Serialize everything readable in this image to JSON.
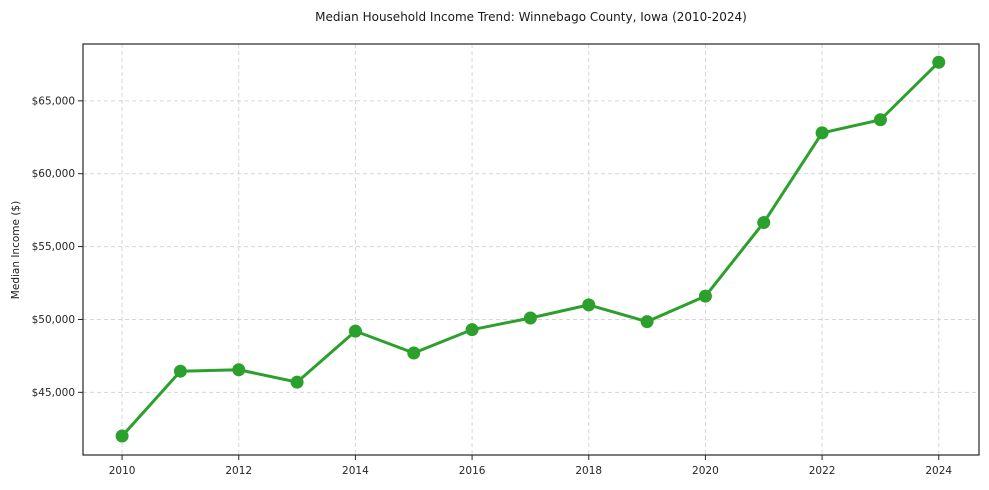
{
  "chart_data": {
    "type": "line",
    "title": "Median Household Income Trend: Winnebago County, Iowa (2010-2024)",
    "xlabel": "",
    "ylabel": "Median Income ($)",
    "series": [
      {
        "name": "Median household income",
        "x": [
          2010,
          2011,
          2012,
          2013,
          2014,
          2015,
          2016,
          2017,
          2018,
          2019,
          2020,
          2021,
          2022,
          2023,
          2024
        ],
        "values": [
          42000,
          46450,
          46550,
          45700,
          49200,
          47700,
          49300,
          50100,
          51000,
          49850,
          51600,
          56650,
          62800,
          63700,
          67650
        ]
      }
    ],
    "x_ticks": [
      2010,
      2012,
      2014,
      2016,
      2018,
      2020,
      2022,
      2024
    ],
    "x_tick_labels": [
      "2010",
      "2012",
      "2014",
      "2016",
      "2018",
      "2020",
      "2022",
      "2024"
    ],
    "y_ticks": [
      45000,
      50000,
      55000,
      60000,
      65000
    ],
    "y_tick_labels": [
      "$45,000",
      "$50,000",
      "$55,000",
      "$60,000",
      "$65,000"
    ],
    "xlim": [
      2009.33,
      2024.69
    ],
    "ylim": [
      40700,
      68900
    ],
    "grid": true,
    "grid_style": "dashed",
    "legend_position": "none",
    "line_color": "#2ca02c",
    "marker_color": "#2ca02c",
    "marker": "circle",
    "grid_color": "#cccccc",
    "spine_color": "#262626",
    "background_color": "#ffffff"
  }
}
